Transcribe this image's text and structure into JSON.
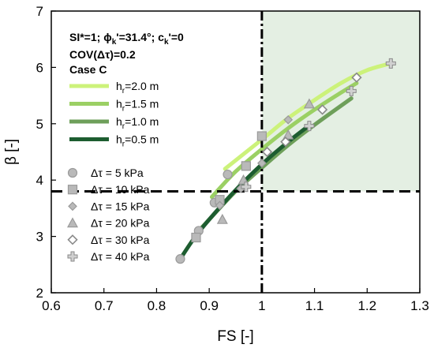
{
  "chart_data": {
    "type": "line",
    "xlabel": "FS [-]",
    "ylabel": "β [-]",
    "xlim": [
      0.6,
      1.3
    ],
    "ylim": [
      2,
      7
    ],
    "x_ticks": [
      "0.6",
      "0.7",
      "0.8",
      "0.9",
      "1",
      "1.1",
      "1.2",
      "1.3"
    ],
    "y_ticks": [
      "2",
      "3",
      "4",
      "5",
      "6",
      "7"
    ],
    "annotations": {
      "line1": "SI*=1; ϕk'=31.4°; ck'=0",
      "line2": "COV(Δτ)=0.2",
      "line3": "Case C"
    },
    "threshold": {
      "fs": 1.0,
      "beta": 3.8,
      "region_color": "#e4efe3"
    },
    "series": [
      {
        "name": "hr=2.0 m",
        "color": "#ccf27a",
        "x": [
          0.93,
          1.0,
          1.05,
          1.1,
          1.15,
          1.2,
          1.245
        ],
        "y": [
          4.2,
          4.72,
          5.1,
          5.42,
          5.72,
          5.95,
          6.07
        ]
      },
      {
        "name": "hr=1.5 m",
        "color": "#9bd064",
        "x": [
          0.905,
          0.95,
          1.0,
          1.05,
          1.1,
          1.15,
          1.18
        ],
        "y": [
          3.7,
          4.15,
          4.55,
          4.92,
          5.25,
          5.55,
          5.72
        ]
      },
      {
        "name": "hr=1.0 m",
        "color": "#6e9f5a",
        "x": [
          0.87,
          0.9,
          0.95,
          1.0,
          1.05,
          1.1,
          1.17
        ],
        "y": [
          3.0,
          3.3,
          3.8,
          4.22,
          4.62,
          4.98,
          5.45
        ]
      },
      {
        "name": "hr=0.5 m",
        "color": "#1d5d30",
        "x": [
          0.845,
          0.87,
          0.9,
          0.95,
          1.0,
          1.05,
          1.09
        ],
        "y": [
          2.6,
          2.95,
          3.3,
          3.82,
          4.28,
          4.68,
          4.97
        ]
      }
    ],
    "markers": [
      {
        "name": "Δτ = 5 kPa",
        "shape": "circle",
        "x": [
          0.845,
          0.88,
          0.91,
          0.935
        ],
        "y": [
          2.6,
          3.1,
          3.6,
          4.1
        ]
      },
      {
        "name": "Δτ = 10 kPa",
        "shape": "square",
        "x": [
          0.875,
          0.92,
          0.97,
          1.0
        ],
        "y": [
          2.98,
          3.65,
          4.25,
          4.78
        ]
      },
      {
        "name": "Δτ = 15 kPa",
        "shape": "diamond",
        "x": [
          0.92,
          0.96,
          1.0,
          1.05
        ],
        "y": [
          3.55,
          3.85,
          4.3,
          5.07
        ]
      },
      {
        "name": "Δτ = 20 kPa",
        "shape": "triangle",
        "x": [
          0.925,
          0.965,
          1.05,
          1.09
        ],
        "y": [
          3.3,
          4.0,
          4.8,
          5.35
        ]
      },
      {
        "name": "Δτ = 30 kPa",
        "shape": "open-diamond",
        "x": [
          1.01,
          1.045,
          1.115,
          1.18
        ],
        "y": [
          4.5,
          4.68,
          5.25,
          5.82
        ]
      },
      {
        "name": "Δτ = 40 kPa",
        "shape": "plus",
        "x": [
          0.97,
          1.09,
          1.17,
          1.245
        ],
        "y": [
          3.88,
          4.96,
          5.58,
          6.07
        ]
      }
    ],
    "legend_placement": "left",
    "grid": false
  }
}
